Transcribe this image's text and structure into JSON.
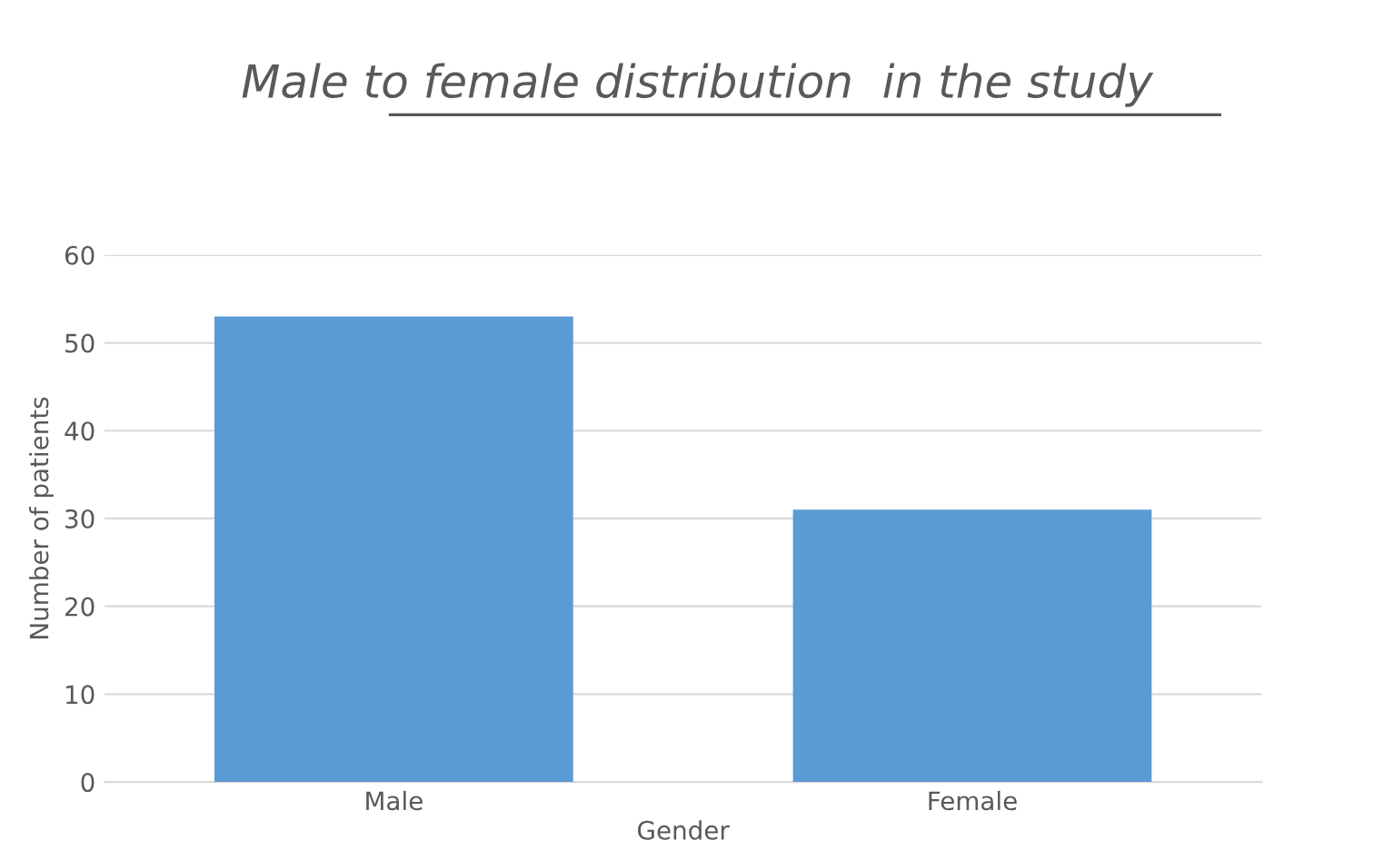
{
  "chart_data": {
    "type": "bar",
    "title": "Male to female distribution  in the study",
    "categories": [
      "Male",
      "Female"
    ],
    "values": [
      53,
      31
    ],
    "color": "#5b9bd5",
    "xlabel": "Gender",
    "ylabel": "Number of patients",
    "ylim": [
      0,
      60
    ],
    "yticks": [
      0,
      10,
      20,
      30,
      40,
      50,
      60
    ],
    "grid": "y"
  }
}
